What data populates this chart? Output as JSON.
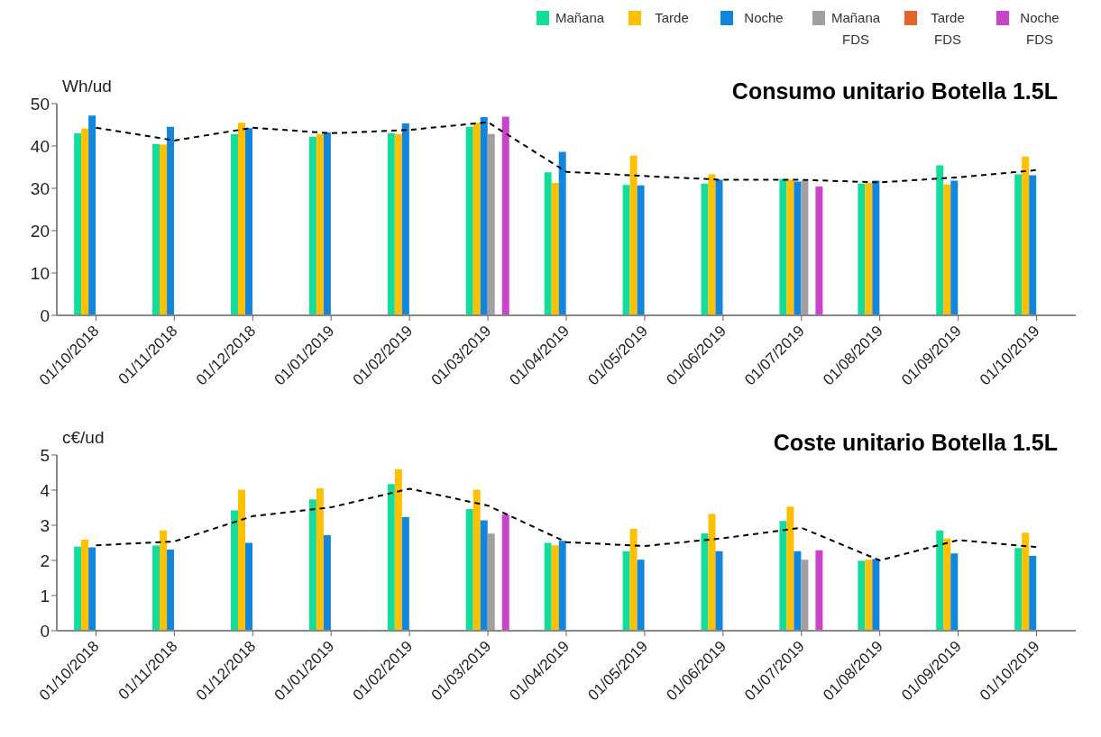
{
  "chart_data": [
    {
      "type": "bar",
      "title": "Consumo unitario Botella 1.5L",
      "ylabel": "Wh/ud",
      "categories": [
        "01/10/2018",
        "01/11/2018",
        "01/12/2018",
        "01/01/2019",
        "01/02/2019",
        "01/03/2019",
        "01/04/2019",
        "01/05/2019",
        "01/06/2019",
        "01/07/2019",
        "01/08/2019",
        "01/09/2019",
        "01/10/2019"
      ],
      "ylim": [
        0,
        50
      ],
      "yticks": [
        0,
        10,
        20,
        30,
        40,
        50
      ],
      "grid": false,
      "legend": "top right",
      "marker": "none",
      "series": [
        {
          "name": "Mañana",
          "color": "#14dc9a",
          "values": [
            43.0,
            40.5,
            42.8,
            42.2,
            43.0,
            44.5,
            33.8,
            30.8,
            31.1,
            32.2,
            31.1,
            35.4,
            33.3
          ]
        },
        {
          "name": "Tarde",
          "color": "#ffc000",
          "values": [
            44.1,
            40.3,
            45.5,
            42.8,
            42.8,
            45.5,
            31.3,
            37.7,
            33.3,
            32.0,
            31.3,
            30.9,
            37.5
          ]
        },
        {
          "name": "Noche",
          "color": "#1485dc",
          "values": [
            47.2,
            44.5,
            44.2,
            43.2,
            45.3,
            46.8,
            38.6,
            30.7,
            32.0,
            31.6,
            31.8,
            31.8,
            33.1
          ]
        },
        {
          "name": "Mañana FDS",
          "color": "#a0a0a0",
          "values": [
            null,
            null,
            null,
            null,
            null,
            42.8,
            null,
            null,
            null,
            31.8,
            null,
            null,
            null
          ]
        },
        {
          "name": "Tarde FDS",
          "color": "#e0662a",
          "values": [
            null,
            null,
            null,
            null,
            null,
            null,
            null,
            null,
            null,
            null,
            null,
            null,
            null
          ]
        },
        {
          "name": "Noche FDS",
          "color": "#c944c9",
          "values": [
            null,
            null,
            null,
            null,
            null,
            46.9,
            null,
            null,
            null,
            30.4,
            null,
            null,
            null
          ]
        },
        {
          "type": "line",
          "color": "#000000",
          "line_style": "dashed",
          "values": [
            44.3,
            41.3,
            44.3,
            43.0,
            43.8,
            45.6,
            33.9,
            32.9,
            32.0,
            32.0,
            31.4,
            32.6,
            34.3
          ]
        }
      ]
    },
    {
      "type": "bar",
      "title": "Coste unitario Botella 1.5L",
      "ylabel": "c€/ud",
      "categories": [
        "01/10/2018",
        "01/11/2018",
        "01/12/2018",
        "01/01/2019",
        "01/02/2019",
        "01/03/2019",
        "01/04/2019",
        "01/05/2019",
        "01/06/2019",
        "01/07/2019",
        "01/08/2019",
        "01/09/2019",
        "01/10/2019"
      ],
      "ylim": [
        0,
        5
      ],
      "yticks": [
        0,
        1,
        2,
        3,
        4,
        5
      ],
      "grid": false,
      "legend": false,
      "marker": "none",
      "series": [
        {
          "color": "#14dc9a",
          "values": [
            2.39,
            2.42,
            3.42,
            3.74,
            4.17,
            3.46,
            2.5,
            2.26,
            2.77,
            3.12,
            1.99,
            2.85,
            2.35
          ]
        },
        {
          "color": "#ffc000",
          "values": [
            2.59,
            2.85,
            4.01,
            4.05,
            4.59,
            4.01,
            2.43,
            2.9,
            3.33,
            3.53,
            2.02,
            2.62,
            2.79
          ]
        },
        {
          "color": "#1485dc",
          "values": [
            2.37,
            2.31,
            2.5,
            2.72,
            3.23,
            3.14,
            2.56,
            2.02,
            2.26,
            2.26,
            2.04,
            2.2,
            2.13
          ]
        },
        {
          "color": "#a0a0a0",
          "values": [
            null,
            null,
            null,
            null,
            null,
            2.76,
            null,
            null,
            null,
            2.02,
            null,
            null,
            null
          ]
        },
        {
          "color": "#e0662a",
          "values": [
            null,
            null,
            null,
            null,
            null,
            null,
            null,
            null,
            null,
            null,
            null,
            null,
            null
          ]
        },
        {
          "color": "#c944c9",
          "values": [
            null,
            null,
            null,
            null,
            null,
            3.3,
            null,
            null,
            null,
            2.29,
            null,
            null,
            null
          ]
        },
        {
          "type": "line",
          "color": "#000000",
          "line_style": "dashed",
          "values": [
            2.43,
            2.54,
            3.26,
            3.51,
            4.04,
            3.56,
            2.52,
            2.41,
            2.63,
            2.93,
            2.0,
            2.58,
            2.38
          ]
        }
      ]
    }
  ]
}
